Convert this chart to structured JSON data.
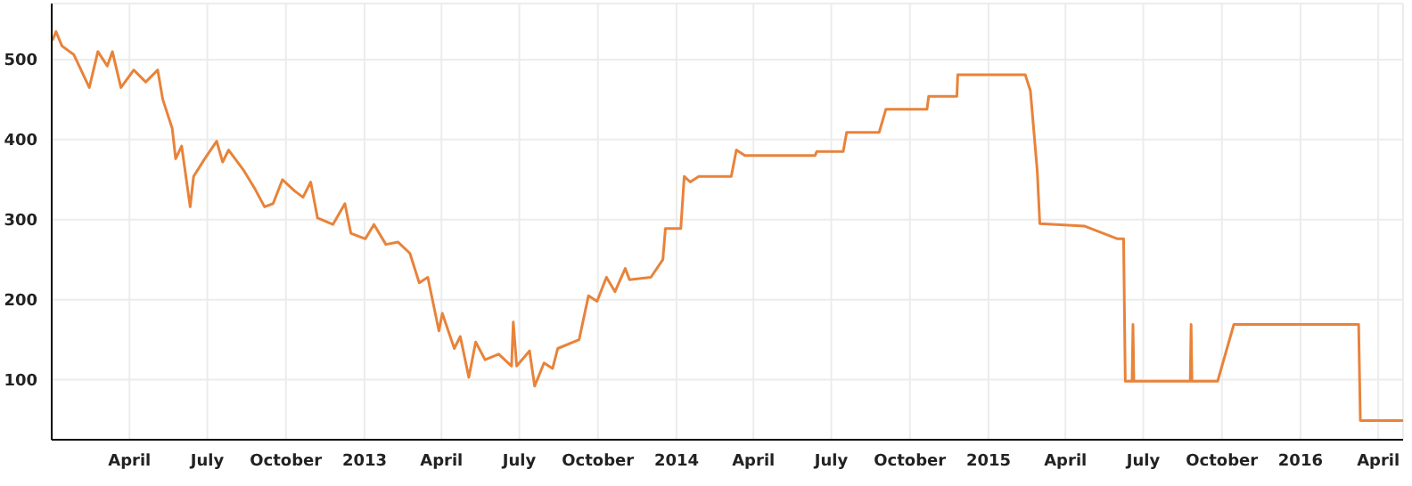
{
  "chart_data": {
    "type": "line",
    "color": "#e8833a",
    "grid": true,
    "line_style": "solid",
    "marker": "none",
    "xlim": [
      "2012-01-01",
      "2016-04-30"
    ],
    "ylim": [
      25,
      570
    ],
    "yticks": [
      100,
      200,
      300,
      400,
      500
    ],
    "xticks": [
      {
        "value": "2012-04-01",
        "label": "April"
      },
      {
        "value": "2012-07-01",
        "label": "July"
      },
      {
        "value": "2012-10-01",
        "label": "October"
      },
      {
        "value": "2013-01-01",
        "label": "2013"
      },
      {
        "value": "2013-04-01",
        "label": "April"
      },
      {
        "value": "2013-07-01",
        "label": "July"
      },
      {
        "value": "2013-10-01",
        "label": "October"
      },
      {
        "value": "2014-01-01",
        "label": "2014"
      },
      {
        "value": "2014-04-01",
        "label": "April"
      },
      {
        "value": "2014-07-01",
        "label": "July"
      },
      {
        "value": "2014-10-01",
        "label": "October"
      },
      {
        "value": "2015-01-01",
        "label": "2015"
      },
      {
        "value": "2015-04-01",
        "label": "April"
      },
      {
        "value": "2015-07-01",
        "label": "July"
      },
      {
        "value": "2015-10-01",
        "label": "October"
      },
      {
        "value": "2016-01-01",
        "label": "2016"
      },
      {
        "value": "2016-04-01",
        "label": "April"
      }
    ],
    "x": [
      "2012-01-02",
      "2012-01-06",
      "2012-01-13",
      "2012-01-27",
      "2012-02-14",
      "2012-02-24",
      "2012-03-06",
      "2012-03-12",
      "2012-03-22",
      "2012-04-06",
      "2012-04-20",
      "2012-05-04",
      "2012-05-10",
      "2012-05-21",
      "2012-05-25",
      "2012-06-01",
      "2012-06-11",
      "2012-06-15",
      "2012-06-28",
      "2012-07-12",
      "2012-07-19",
      "2012-07-26",
      "2012-08-13",
      "2012-08-26",
      "2012-09-06",
      "2012-09-16",
      "2012-09-27",
      "2012-10-11",
      "2012-10-21",
      "2012-10-30",
      "2012-11-07",
      "2012-11-25",
      "2012-12-09",
      "2012-12-16",
      "2013-01-02",
      "2013-01-12",
      "2013-01-26",
      "2013-02-09",
      "2013-02-23",
      "2013-03-06",
      "2013-03-16",
      "2013-03-29",
      "2013-04-02",
      "2013-04-16",
      "2013-04-23",
      "2013-05-03",
      "2013-05-11",
      "2013-05-22",
      "2013-06-07",
      "2013-06-22",
      "2013-06-24",
      "2013-06-28",
      "2013-07-13",
      "2013-07-19",
      "2013-07-30",
      "2013-08-09",
      "2013-08-15",
      "2013-09-09",
      "2013-09-20",
      "2013-09-30",
      "2013-10-11",
      "2013-10-21",
      "2013-11-02",
      "2013-11-07",
      "2013-12-02",
      "2013-12-16",
      "2013-12-19",
      "2014-01-06",
      "2014-01-10",
      "2014-01-17",
      "2014-01-27",
      "2014-03-06",
      "2014-03-12",
      "2014-03-22",
      "2014-06-12",
      "2014-06-14",
      "2014-07-15",
      "2014-07-19",
      "2014-08-26",
      "2014-09-03",
      "2014-10-21",
      "2014-10-23",
      "2014-11-25",
      "2014-11-26",
      "2015-02-13",
      "2015-02-19",
      "2015-02-27",
      "2015-03-02",
      "2015-04-23",
      "2015-06-01",
      "2015-06-08",
      "2015-06-10",
      "2015-06-18",
      "2015-06-19",
      "2015-06-20",
      "2015-08-25",
      "2015-08-26",
      "2015-08-27",
      "2015-09-26",
      "2015-10-15",
      "2016-03-09",
      "2016-03-11",
      "2016-04-30"
    ],
    "values": [
      524,
      535,
      517,
      506,
      465,
      510,
      492,
      510,
      465,
      487,
      472,
      487,
      450,
      414,
      376,
      392,
      316,
      354,
      376,
      398,
      372,
      387,
      361,
      338,
      316,
      320,
      350,
      336,
      328,
      347,
      302,
      294,
      320,
      283,
      276,
      294,
      269,
      272,
      258,
      221,
      228,
      161,
      183,
      139,
      154,
      103,
      147,
      125,
      132,
      117,
      172,
      117,
      136,
      92,
      121,
      114,
      139,
      150,
      205,
      198,
      228,
      210,
      239,
      225,
      228,
      250,
      289,
      289,
      354,
      347,
      354,
      354,
      387,
      380,
      380,
      385,
      385,
      409,
      409,
      438,
      438,
      454,
      454,
      481,
      481,
      461,
      361,
      295,
      292,
      276,
      276,
      98,
      98,
      169,
      98,
      98,
      169,
      98,
      98,
      169,
      169,
      49,
      49
    ]
  }
}
